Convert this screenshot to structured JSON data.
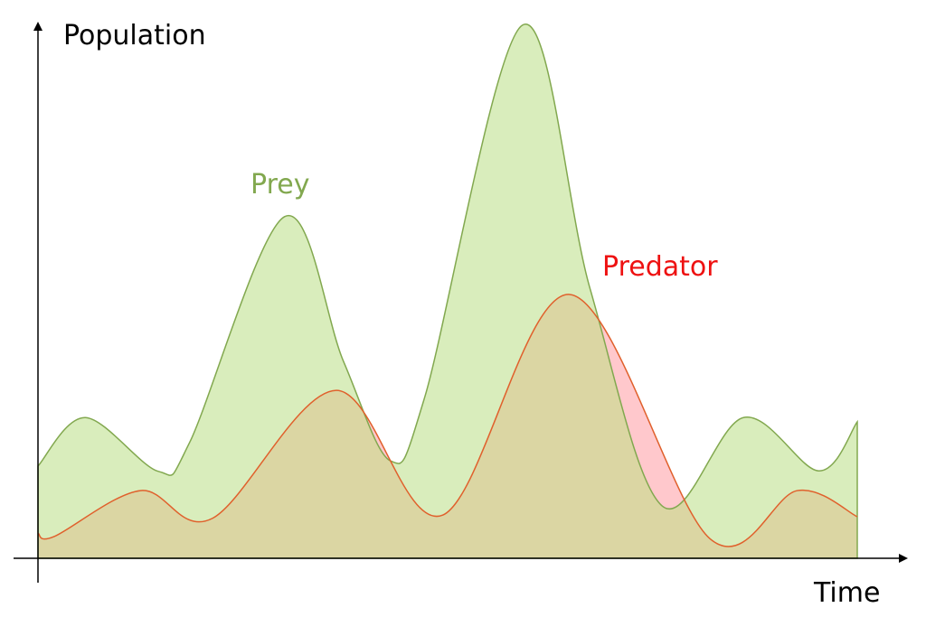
{
  "chart_data": {
    "type": "area",
    "xlabel": "Time",
    "ylabel": "Population",
    "xlim": [
      0,
      100
    ],
    "ylim": [
      0,
      100
    ],
    "series": [
      {
        "name": "Prey",
        "color": "#82a84f",
        "fill": "#d9edbc",
        "x": [
          0,
          5.8,
          14.7,
          18.5,
          30.1,
          37.3,
          43.0,
          47.2,
          59.1,
          67.4,
          76.2,
          86.1,
          95.3,
          100
        ],
        "values": [
          17.3,
          26.4,
          16.3,
          21.7,
          64.1,
          36.9,
          18.3,
          30.2,
          100,
          50.5,
          9.8,
          26.4,
          16.4,
          25.6
        ]
      },
      {
        "name": "Predator",
        "color": "#e0602c",
        "fill": "#ffc8cc",
        "x": [
          0,
          2.0,
          12.5,
          21.3,
          36.4,
          49.4,
          64.9,
          82.0,
          92.7,
          100
        ],
        "values": [
          4.7,
          4.1,
          12.7,
          7.5,
          31.5,
          8.1,
          49.5,
          3.7,
          12.7,
          7.8
        ]
      }
    ]
  }
}
